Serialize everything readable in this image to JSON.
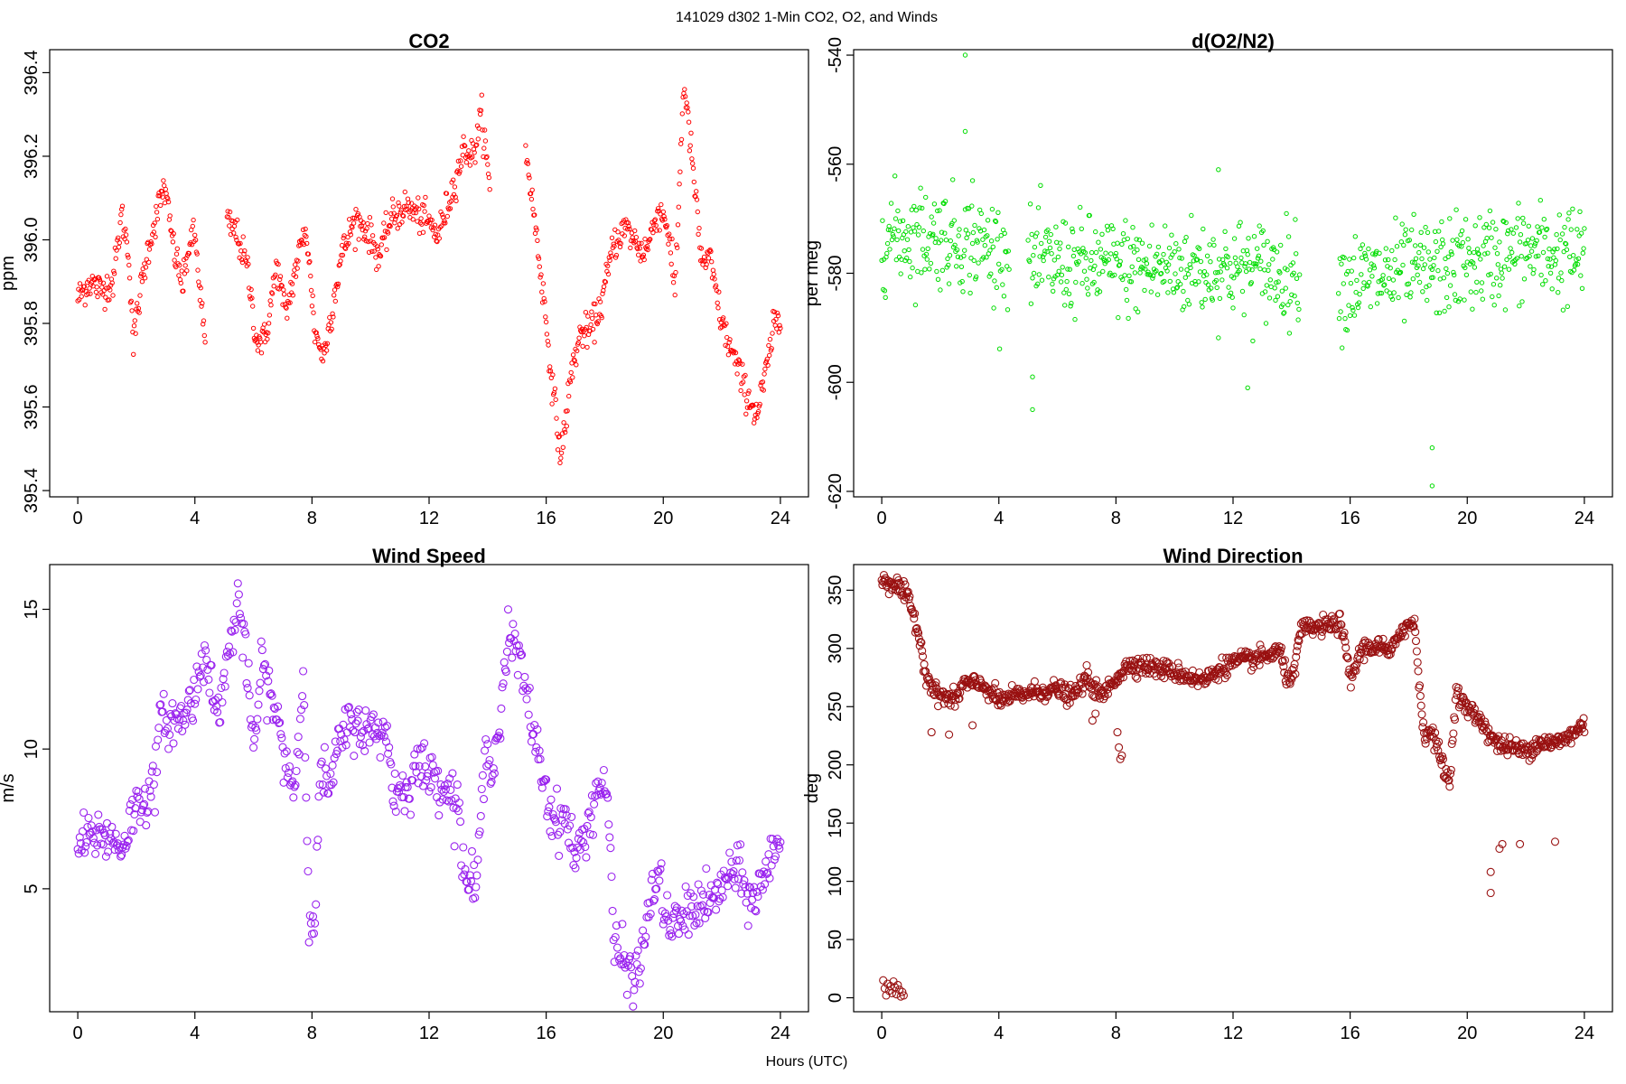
{
  "figure": {
    "title": "141029   d302   1-Min CO2, O2, and Winds",
    "xlabel": "Hours (UTC)"
  },
  "chart_data": [
    {
      "type": "scatter",
      "title": "CO2",
      "ylabel": "ppm",
      "xlabel": "",
      "color": "#ff0000",
      "marker_radius": 2.2,
      "xlim": [
        -0.96,
        24.96
      ],
      "ylim": [
        395.385,
        396.455
      ],
      "xticks": [
        "0",
        "4",
        "8",
        "12",
        "16",
        "20",
        "24"
      ],
      "yticks": [
        "395.4",
        "395.6",
        "395.8",
        "396.0",
        "396.2",
        "396.4"
      ],
      "grid": false,
      "gaps": [
        [
          4.35,
          5.1
        ],
        [
          14.1,
          15.3
        ]
      ],
      "points_per_hour": 40,
      "noise": 0.02,
      "trend": [
        [
          0.0,
          395.86
        ],
        [
          0.4,
          395.9
        ],
        [
          0.8,
          395.88
        ],
        [
          1.2,
          395.9
        ],
        [
          1.5,
          396.06
        ],
        [
          1.75,
          395.96
        ],
        [
          1.9,
          395.75
        ],
        [
          2.1,
          395.86
        ],
        [
          2.4,
          395.98
        ],
        [
          2.95,
          396.13
        ],
        [
          3.3,
          395.97
        ],
        [
          3.6,
          395.89
        ],
        [
          3.8,
          395.99
        ],
        [
          4.0,
          396.01
        ],
        [
          4.35,
          395.75
        ],
        [
          5.1,
          396.04
        ],
        [
          5.4,
          396.02
        ],
        [
          5.8,
          395.93
        ],
        [
          6.1,
          395.76
        ],
        [
          6.4,
          395.76
        ],
        [
          6.8,
          395.94
        ],
        [
          7.1,
          395.82
        ],
        [
          7.5,
          395.95
        ],
        [
          7.8,
          396.03
        ],
        [
          8.1,
          395.78
        ],
        [
          8.4,
          395.72
        ],
        [
          8.7,
          395.84
        ],
        [
          9.0,
          395.96
        ],
        [
          9.3,
          396.02
        ],
        [
          9.5,
          396.05
        ],
        [
          9.9,
          396.02
        ],
        [
          10.3,
          395.96
        ],
        [
          10.7,
          396.05
        ],
        [
          11.2,
          396.08
        ],
        [
          11.6,
          396.06
        ],
        [
          12.0,
          396.04
        ],
        [
          12.3,
          396.01
        ],
        [
          12.8,
          396.12
        ],
        [
          13.2,
          396.22
        ],
        [
          13.5,
          396.2
        ],
        [
          13.8,
          396.3
        ],
        [
          14.1,
          396.1
        ],
        [
          15.3,
          396.22
        ],
        [
          15.6,
          396.05
        ],
        [
          15.9,
          395.87
        ],
        [
          16.2,
          395.66
        ],
        [
          16.5,
          395.48
        ],
        [
          16.9,
          395.7
        ],
        [
          17.2,
          395.78
        ],
        [
          17.5,
          395.78
        ],
        [
          17.9,
          395.85
        ],
        [
          18.3,
          395.99
        ],
        [
          18.7,
          396.03
        ],
        [
          19.0,
          396.0
        ],
        [
          19.3,
          395.97
        ],
        [
          19.5,
          395.99
        ],
        [
          19.8,
          396.07
        ],
        [
          20.1,
          396.05
        ],
        [
          20.4,
          395.88
        ],
        [
          20.7,
          396.38
        ],
        [
          21.0,
          396.18
        ],
        [
          21.3,
          395.95
        ],
        [
          21.6,
          395.95
        ],
        [
          22.0,
          395.8
        ],
        [
          22.4,
          395.72
        ],
        [
          22.8,
          395.64
        ],
        [
          23.2,
          395.58
        ],
        [
          23.5,
          395.68
        ],
        [
          23.8,
          395.8
        ]
      ]
    },
    {
      "type": "scatter",
      "title": "d(O2/N2)",
      "ylabel": "per meg",
      "xlabel": "",
      "color": "#00dd00",
      "marker_radius": 2.2,
      "xlim": [
        -0.96,
        24.96
      ],
      "ylim": [
        -621,
        -539
      ],
      "xticks": [
        "0",
        "4",
        "8",
        "12",
        "16",
        "20",
        "24"
      ],
      "yticks": [
        "-620",
        "-600",
        "-580",
        "-560",
        "-540"
      ],
      "grid": false,
      "gaps": [
        [
          4.35,
          5.0
        ],
        [
          14.3,
          15.6
        ]
      ],
      "points_per_hour": 40,
      "noise": 4.5,
      "trend": [
        [
          0.0,
          -573
        ],
        [
          2.0,
          -573
        ],
        [
          4.2,
          -576
        ],
        [
          5.0,
          -578
        ],
        [
          9.0,
          -579
        ],
        [
          12.0,
          -579
        ],
        [
          14.3,
          -580
        ],
        [
          15.6,
          -582
        ],
        [
          18.0,
          -580
        ],
        [
          20.0,
          -578
        ],
        [
          22.0,
          -576
        ],
        [
          24.0,
          -577
        ]
      ],
      "outliers": [
        [
          2.85,
          -540
        ],
        [
          2.85,
          -554
        ],
        [
          5.15,
          -599
        ],
        [
          5.15,
          -605
        ],
        [
          12.5,
          -601
        ],
        [
          18.8,
          -612
        ],
        [
          18.8,
          -619
        ],
        [
          3.1,
          -563
        ],
        [
          11.5,
          -561
        ]
      ]
    },
    {
      "type": "scatter",
      "title": "Wind Speed",
      "ylabel": "m/s",
      "xlabel": "",
      "color": "#9922ee",
      "marker_radius": 4,
      "xlim": [
        -0.96,
        24.96
      ],
      "ylim": [
        0.6,
        16.6
      ],
      "xticks": [
        "0",
        "4",
        "8",
        "12",
        "16",
        "20",
        "24"
      ],
      "yticks": [
        "5",
        "10",
        "15"
      ],
      "grid": false,
      "gaps": [],
      "points_per_hour": 30,
      "noise": 0.45,
      "trend": [
        [
          0.0,
          6.6
        ],
        [
          0.8,
          7.0
        ],
        [
          1.5,
          6.5
        ],
        [
          2.0,
          8.0
        ],
        [
          2.6,
          8.5
        ],
        [
          2.8,
          11.0
        ],
        [
          3.5,
          11.0
        ],
        [
          4.0,
          12.0
        ],
        [
          4.4,
          13.8
        ],
        [
          4.7,
          11.0
        ],
        [
          5.0,
          12.5
        ],
        [
          5.5,
          15.4
        ],
        [
          5.8,
          12.5
        ],
        [
          6.0,
          10.0
        ],
        [
          6.3,
          13.0
        ],
        [
          6.7,
          11.5
        ],
        [
          7.0,
          10.0
        ],
        [
          7.4,
          8.5
        ],
        [
          7.7,
          12.5
        ],
        [
          7.9,
          4.5
        ],
        [
          8.1,
          3.8
        ],
        [
          8.3,
          9.5
        ],
        [
          8.6,
          8.5
        ],
        [
          9.0,
          10.5
        ],
        [
          9.5,
          11.0
        ],
        [
          10.0,
          10.5
        ],
        [
          10.5,
          10.8
        ],
        [
          10.8,
          8.5
        ],
        [
          11.2,
          8.5
        ],
        [
          11.6,
          9.5
        ],
        [
          12.0,
          9.1
        ],
        [
          12.5,
          8.8
        ],
        [
          13.0,
          8.0
        ],
        [
          13.2,
          5.5
        ],
        [
          13.6,
          5.0
        ],
        [
          13.9,
          9.5
        ],
        [
          14.3,
          10.0
        ],
        [
          14.7,
          14.0
        ],
        [
          15.0,
          13.5
        ],
        [
          15.4,
          11.5
        ],
        [
          15.8,
          9.5
        ],
        [
          16.2,
          7.5
        ],
        [
          16.7,
          7.5
        ],
        [
          17.0,
          6.0
        ],
        [
          17.4,
          7.2
        ],
        [
          17.8,
          8.8
        ],
        [
          18.1,
          8.5
        ],
        [
          18.3,
          3.0
        ],
        [
          18.6,
          2.5
        ],
        [
          19.0,
          1.8
        ],
        [
          19.2,
          2.2
        ],
        [
          19.4,
          3.5
        ],
        [
          19.6,
          5.0
        ],
        [
          19.9,
          5.2
        ],
        [
          20.2,
          3.5
        ],
        [
          20.7,
          4.0
        ],
        [
          21.2,
          4.5
        ],
        [
          21.7,
          4.5
        ],
        [
          22.2,
          5.5
        ],
        [
          22.6,
          5.5
        ],
        [
          23.0,
          4.5
        ],
        [
          23.5,
          5.5
        ],
        [
          23.9,
          6.8
        ]
      ]
    },
    {
      "type": "scatter",
      "title": "Wind Direction",
      "ylabel": "deg",
      "xlabel": "",
      "color": "#991111",
      "marker_radius": 4,
      "xlim": [
        -0.96,
        24.96
      ],
      "ylim": [
        -12,
        372
      ],
      "xticks": [
        "0",
        "4",
        "8",
        "12",
        "16",
        "20",
        "24"
      ],
      "yticks": [
        "0",
        "50",
        "100",
        "150",
        "200",
        "250",
        "300",
        "350"
      ],
      "grid": false,
      "gaps": [],
      "points_per_hour": 40,
      "noise": 4,
      "trend": [
        [
          0.0,
          358
        ],
        [
          0.5,
          355
        ],
        [
          0.9,
          342
        ],
        [
          1.2,
          320
        ],
        [
          1.5,
          280
        ],
        [
          1.8,
          262
        ],
        [
          2.5,
          255
        ],
        [
          2.8,
          270
        ],
        [
          3.5,
          268
        ],
        [
          4.0,
          255
        ],
        [
          5.0,
          262
        ],
        [
          6.0,
          265
        ],
        [
          6.5,
          258
        ],
        [
          7.0,
          275
        ],
        [
          7.5,
          258
        ],
        [
          8.0,
          275
        ],
        [
          8.5,
          287
        ],
        [
          9.0,
          285
        ],
        [
          10.0,
          280
        ],
        [
          11.0,
          272
        ],
        [
          11.5,
          282
        ],
        [
          12.0,
          288
        ],
        [
          13.0,
          292
        ],
        [
          13.6,
          298
        ],
        [
          13.8,
          276
        ],
        [
          14.1,
          278
        ],
        [
          14.3,
          316
        ],
        [
          15.0,
          318
        ],
        [
          15.7,
          322
        ],
        [
          16.0,
          272
        ],
        [
          16.4,
          300
        ],
        [
          17.0,
          302
        ],
        [
          17.4,
          295
        ],
        [
          17.7,
          316
        ],
        [
          18.2,
          322
        ],
        [
          18.5,
          228
        ],
        [
          18.8,
          228
        ],
        [
          19.1,
          205
        ],
        [
          19.4,
          183
        ],
        [
          19.6,
          262
        ],
        [
          20.0,
          248
        ],
        [
          20.4,
          240
        ],
        [
          21.0,
          218
        ],
        [
          21.5,
          215
        ],
        [
          22.0,
          212
        ],
        [
          22.5,
          220
        ],
        [
          23.0,
          218
        ],
        [
          23.5,
          225
        ],
        [
          24.0,
          235
        ]
      ],
      "outliers": [
        [
          0.05,
          15
        ],
        [
          0.1,
          8
        ],
        [
          0.15,
          2
        ],
        [
          0.2,
          12
        ],
        [
          0.25,
          6
        ],
        [
          0.3,
          10
        ],
        [
          0.35,
          4
        ],
        [
          0.4,
          14
        ],
        [
          0.45,
          9
        ],
        [
          0.5,
          3
        ],
        [
          0.55,
          11
        ],
        [
          0.6,
          7
        ],
        [
          0.65,
          1
        ],
        [
          0.7,
          5
        ],
        [
          0.75,
          2
        ],
        [
          1.7,
          228
        ],
        [
          2.3,
          226
        ],
        [
          3.1,
          234
        ],
        [
          7.2,
          238
        ],
        [
          7.3,
          244
        ],
        [
          8.1,
          215
        ],
        [
          8.15,
          205
        ],
        [
          8.2,
          208
        ],
        [
          8.05,
          228
        ],
        [
          20.8,
          90
        ],
        [
          20.8,
          108
        ],
        [
          21.1,
          128
        ],
        [
          21.2,
          132
        ],
        [
          21.8,
          132
        ],
        [
          23.0,
          134
        ]
      ]
    }
  ]
}
